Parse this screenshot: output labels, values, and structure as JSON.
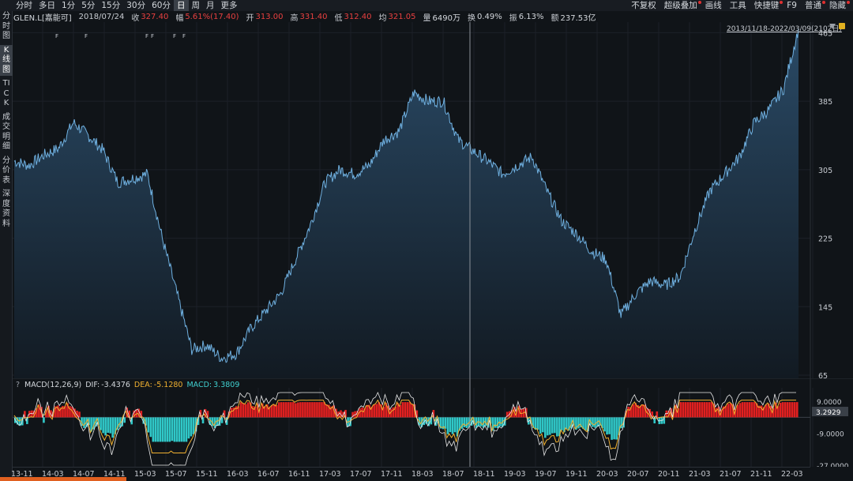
{
  "period_tabs": [
    "分时",
    "多日",
    "1分",
    "5分",
    "15分",
    "30分",
    "60分",
    "日",
    "周",
    "月",
    "更多"
  ],
  "active_period": "日",
  "right_tools": [
    {
      "label": "不复权",
      "dot": false
    },
    {
      "label": "超级叠加",
      "dot": true
    },
    {
      "label": "画线",
      "dot": false
    },
    {
      "label": "工具",
      "dot": false
    },
    {
      "label": "快捷键",
      "dot": true
    },
    {
      "label": "F9",
      "dot": false
    },
    {
      "label": "普通",
      "dot": true
    },
    {
      "label": "隐藏",
      "dot": true
    }
  ],
  "sidebar": [
    {
      "label": "分时图",
      "active": false
    },
    {
      "label": "K线图",
      "active": true
    },
    {
      "label": "TICK",
      "active": false
    },
    {
      "label": "成交明细",
      "active": false
    },
    {
      "label": "分价表",
      "active": false
    },
    {
      "label": "深度资料",
      "active": false
    }
  ],
  "info": {
    "symbol": "GLEN.L[嘉能可]",
    "date": "2018/07/24",
    "close_label": "收",
    "close": "327.40",
    "change_label": "幅",
    "change": "5.61%(17.40)",
    "open_label": "开",
    "open": "313.00",
    "high_label": "高",
    "high": "331.40",
    "low_label": "低",
    "low": "312.40",
    "avg_label": "均",
    "avg": "321.05",
    "volume_label": "量",
    "volume": "6490万",
    "turnover_label": "换",
    "turnover": "0.49%",
    "amplitude_label": "振",
    "amplitude": "6.13%",
    "amount_label": "额",
    "amount": "237.53亿"
  },
  "date_range": "2013/11/18-2022/03/09(2102日)",
  "macd_legend": {
    "title": "MACD(12,26,9)",
    "dif_label": "DIF:",
    "dif": "-3.4376",
    "dea_label": "DEA:",
    "dea": "-5.1280",
    "macd_label": "MACD:",
    "macd": "3.3809"
  },
  "colors": {
    "price_line": "#6fb0e0",
    "area_top": "#2a4a66",
    "area_bottom": "#121a22",
    "macd_pos": "#e02020",
    "macd_neg": "#30c8c8",
    "dif_line": "#e8e8e8",
    "dea_line": "#f0b030",
    "crosshair": "#8a9098",
    "grid": "#1c2128"
  },
  "chart_data": [
    {
      "type": "area",
      "series": [
        {
          "name": "GLEN.L"
        }
      ],
      "x_range": [
        "2013-11-18",
        "2022-03-09"
      ],
      "x": [
        "2013-11",
        "2014-01",
        "2014-03",
        "2014-05",
        "2014-07",
        "2014-09",
        "2014-11",
        "2015-01",
        "2015-03",
        "2015-05",
        "2015-07",
        "2015-08",
        "2015-09",
        "2015-10",
        "2015-11",
        "2015-12",
        "2016-01",
        "2016-03",
        "2016-05",
        "2016-07",
        "2016-09",
        "2016-11",
        "2017-01",
        "2017-03",
        "2017-05",
        "2017-07",
        "2017-09",
        "2017-11",
        "2018-01",
        "2018-03",
        "2018-05",
        "2018-07",
        "2018-09",
        "2018-11",
        "2019-01",
        "2019-03",
        "2019-05",
        "2019-07",
        "2019-09",
        "2019-11",
        "2020-01",
        "2020-03",
        "2020-05",
        "2020-07",
        "2020-09",
        "2020-11",
        "2021-01",
        "2021-03",
        "2021-05",
        "2021-07",
        "2021-09",
        "2021-11",
        "2022-01",
        "2022-03"
      ],
      "values": [
        315,
        310,
        322,
        330,
        360,
        345,
        328,
        290,
        295,
        300,
        225,
        160,
        95,
        100,
        85,
        90,
        120,
        140,
        160,
        200,
        240,
        290,
        305,
        300,
        310,
        340,
        350,
        395,
        385,
        385,
        340,
        327,
        315,
        300,
        310,
        320,
        280,
        245,
        230,
        210,
        200,
        135,
        160,
        175,
        170,
        180,
        235,
        280,
        300,
        320,
        360,
        375,
        400,
        470
      ],
      "ylim": [
        65,
        470
      ],
      "yticks": [
        "465",
        "385",
        "305",
        "225",
        "145",
        "65"
      ],
      "crosshair_date": "2018/07/24"
    },
    {
      "type": "bar",
      "series": [
        {
          "name": "DIF"
        },
        {
          "name": "DEA"
        },
        {
          "name": "MACD"
        }
      ],
      "ylim": [
        -27,
        14
      ],
      "yticks": [
        "9.0000",
        "-9.0000",
        "-27.0000"
      ],
      "current_value": "3.2929"
    }
  ],
  "xaxis_ticks": [
    "13-11",
    "14-03",
    "14-07",
    "14-11",
    "15-03",
    "15-07",
    "15-11",
    "16-03",
    "16-07",
    "16-11",
    "17-03",
    "17-07",
    "17-11",
    "18-03",
    "18-07",
    "18-11",
    "19-03",
    "19-07",
    "19-11",
    "20-03",
    "20-07",
    "20-11",
    "21-03",
    "21-07",
    "21-11",
    "22-03"
  ],
  "event_markers": [
    "F",
    "F",
    "F",
    "F",
    "F",
    "F",
    "F"
  ]
}
